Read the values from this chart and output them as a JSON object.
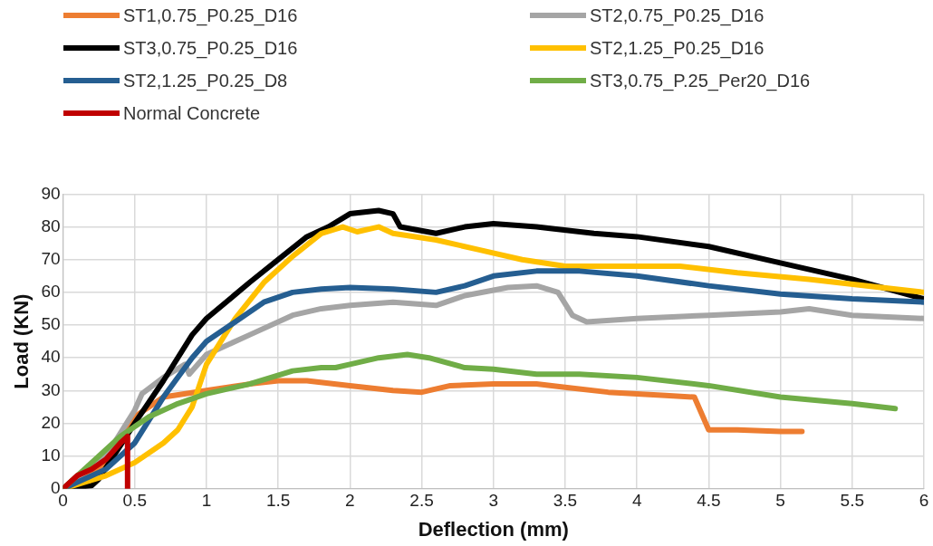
{
  "chart_data": {
    "type": "line",
    "xlabel": "Deflection (mm)",
    "ylabel": "Load (KN)",
    "xlim": [
      0,
      6
    ],
    "xticks": [
      0,
      0.5,
      1,
      1.5,
      2,
      2.5,
      3,
      3.5,
      4,
      4.5,
      5,
      5.5,
      6
    ],
    "ylim": [
      0,
      90
    ],
    "yticks": [
      0,
      10,
      20,
      30,
      40,
      50,
      60,
      70,
      80,
      90
    ],
    "grid": true,
    "legend": "top",
    "marker": "none",
    "line_style": "solid",
    "series": [
      {
        "name": "ST1,0.75_P0.25_D16",
        "color": "#ed7d31",
        "x": [
          0,
          0.3,
          0.5,
          0.7,
          1,
          1.3,
          1.5,
          1.7,
          2,
          2.3,
          2.5,
          2.7,
          3,
          3.3,
          3.5,
          3.8,
          4.2,
          4.4,
          4.5,
          4.7,
          5,
          5.15
        ],
        "values": [
          0,
          8,
          22,
          28,
          30,
          32,
          33,
          33,
          31.5,
          30,
          29.5,
          31.5,
          32,
          32,
          31,
          29.5,
          28.5,
          28,
          18,
          18,
          17.5,
          17.5
        ]
      },
      {
        "name": "ST2,0.75_P0.25_D16",
        "color": "#a5a5a5",
        "x": [
          0,
          0.3,
          0.5,
          0.55,
          0.7,
          0.85,
          0.88,
          1,
          1.3,
          1.6,
          1.8,
          2,
          2.3,
          2.6,
          2.8,
          3.1,
          3.3,
          3.45,
          3.55,
          3.65,
          4,
          4.5,
          5,
          5.2,
          5.5,
          6
        ],
        "values": [
          0,
          10,
          24,
          29,
          34,
          38,
          35,
          41,
          47,
          53,
          55,
          56,
          57,
          56,
          59,
          61.5,
          62,
          60,
          53,
          51,
          52,
          53,
          54,
          55,
          53,
          52
        ]
      },
      {
        "name": "ST3,0.75_P0.25_D16",
        "color": "#000000",
        "x": [
          0,
          0.2,
          0.25,
          0.5,
          0.7,
          0.9,
          1,
          1.3,
          1.5,
          1.7,
          1.85,
          2,
          2.2,
          2.3,
          2.35,
          2.6,
          2.8,
          3,
          3.3,
          3.7,
          4,
          4.5,
          5,
          5.5,
          6
        ],
        "values": [
          0,
          1,
          3,
          20,
          33,
          47,
          52,
          63,
          70,
          77,
          80,
          84,
          85,
          84,
          80,
          78,
          80,
          81,
          80,
          78,
          77,
          74,
          69,
          64,
          58
        ]
      },
      {
        "name": "ST2,1.25_P0.25_D16",
        "color": "#ffc000",
        "x": [
          0,
          0.3,
          0.5,
          0.7,
          0.8,
          0.9,
          1,
          1.2,
          1.4,
          1.6,
          1.8,
          1.95,
          2.05,
          2.2,
          2.3,
          2.6,
          2.9,
          3.2,
          3.5,
          4,
          4.3,
          4.7,
          5.2,
          6
        ],
        "values": [
          0,
          4,
          8,
          14,
          18,
          25,
          38,
          52,
          63,
          71,
          78,
          80,
          78.5,
          80,
          78,
          76,
          73,
          70,
          68,
          68,
          68,
          66,
          64,
          60
        ]
      },
      {
        "name": "ST2,1.25_P0.25_D8",
        "color": "#255e91",
        "x": [
          0,
          0.3,
          0.5,
          0.7,
          0.9,
          1,
          1.2,
          1.4,
          1.6,
          1.8,
          2,
          2.3,
          2.6,
          2.8,
          3,
          3.3,
          3.6,
          4,
          4.5,
          5,
          5.5,
          6
        ],
        "values": [
          0,
          6,
          14,
          28,
          40,
          45,
          51,
          57,
          60,
          61,
          61.5,
          61,
          60,
          62,
          65,
          66.5,
          66.5,
          65,
          62,
          59.5,
          58,
          57
        ]
      },
      {
        "name": "ST3,0.75_P.25_Per20_D16",
        "color": "#70ad47",
        "x": [
          0,
          0.2,
          0.4,
          0.6,
          0.8,
          1,
          1.3,
          1.6,
          1.8,
          1.9,
          2,
          2.2,
          2.4,
          2.55,
          2.8,
          3,
          3.3,
          3.6,
          4,
          4.5,
          5,
          5.5,
          5.8
        ],
        "values": [
          0,
          8,
          16,
          22,
          26,
          29,
          32,
          36,
          37,
          37,
          38,
          40,
          41,
          40,
          37,
          36.5,
          35,
          35,
          34,
          31.5,
          28,
          26,
          24.5
        ]
      },
      {
        "name": "Normal Concrete",
        "color": "#c00000",
        "x": [
          0,
          0.1,
          0.2,
          0.3,
          0.4,
          0.45,
          0.45
        ],
        "values": [
          0,
          4,
          6,
          9,
          14,
          16,
          0
        ]
      }
    ]
  }
}
